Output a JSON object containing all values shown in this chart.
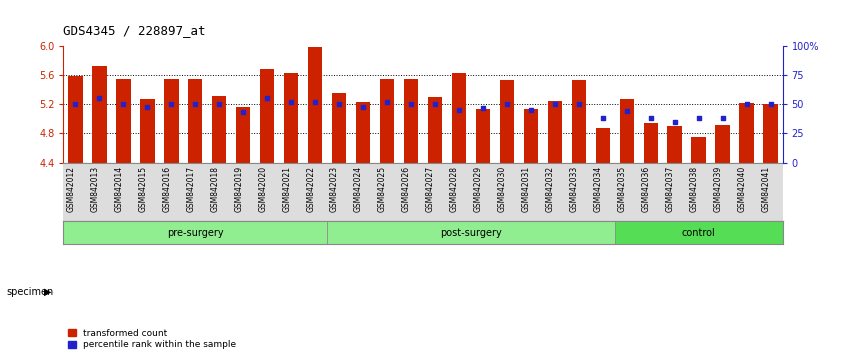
{
  "title": "GDS4345 / 228897_at",
  "categories": [
    "GSM842012",
    "GSM842013",
    "GSM842014",
    "GSM842015",
    "GSM842016",
    "GSM842017",
    "GSM842018",
    "GSM842019",
    "GSM842020",
    "GSM842021",
    "GSM842022",
    "GSM842023",
    "GSM842024",
    "GSM842025",
    "GSM842026",
    "GSM842027",
    "GSM842028",
    "GSM842029",
    "GSM842030",
    "GSM842031",
    "GSM842032",
    "GSM842033",
    "GSM842034",
    "GSM842035",
    "GSM842036",
    "GSM842037",
    "GSM842038",
    "GSM842039",
    "GSM842040",
    "GSM842041"
  ],
  "red_values": [
    5.59,
    5.73,
    5.55,
    5.27,
    5.55,
    5.55,
    5.32,
    5.16,
    5.68,
    5.63,
    5.98,
    5.35,
    5.23,
    5.55,
    5.55,
    5.3,
    5.63,
    5.13,
    5.54,
    5.14,
    5.25,
    5.53,
    4.87,
    5.27,
    4.95,
    4.9,
    4.75,
    4.92,
    5.22,
    5.2
  ],
  "blue_values": [
    50,
    55,
    50,
    48,
    50,
    50,
    50,
    43,
    55,
    52,
    52,
    50,
    48,
    52,
    50,
    50,
    45,
    47,
    50,
    45,
    50,
    50,
    38,
    44,
    38,
    35,
    38,
    38,
    50,
    50
  ],
  "group_ranges": [
    {
      "start": 0,
      "end": 10,
      "label": "pre-surgery",
      "color": "#90EE90"
    },
    {
      "start": 11,
      "end": 22,
      "label": "post-surgery",
      "color": "#90EE90"
    },
    {
      "start": 23,
      "end": 29,
      "label": "control",
      "color": "#55DD55"
    }
  ],
  "ylim_left": [
    4.4,
    6.0
  ],
  "ylim_right": [
    0,
    100
  ],
  "yticks_left": [
    4.4,
    4.8,
    5.2,
    5.6,
    6.0
  ],
  "yticks_right": [
    0,
    25,
    50,
    75,
    100
  ],
  "ytick_labels_right": [
    "0",
    "25",
    "50",
    "75",
    "100%"
  ],
  "bar_color": "#CC2200",
  "dot_color": "#2222CC",
  "grid_color": "#000000",
  "bg_color": "#FFFFFF",
  "left_axis_color": "#CC2200",
  "right_axis_color": "#2222CC",
  "legend_red": "transformed count",
  "legend_blue": "percentile rank within the sample",
  "specimen_label": "specimen",
  "xtick_bg": "#DDDDDD"
}
